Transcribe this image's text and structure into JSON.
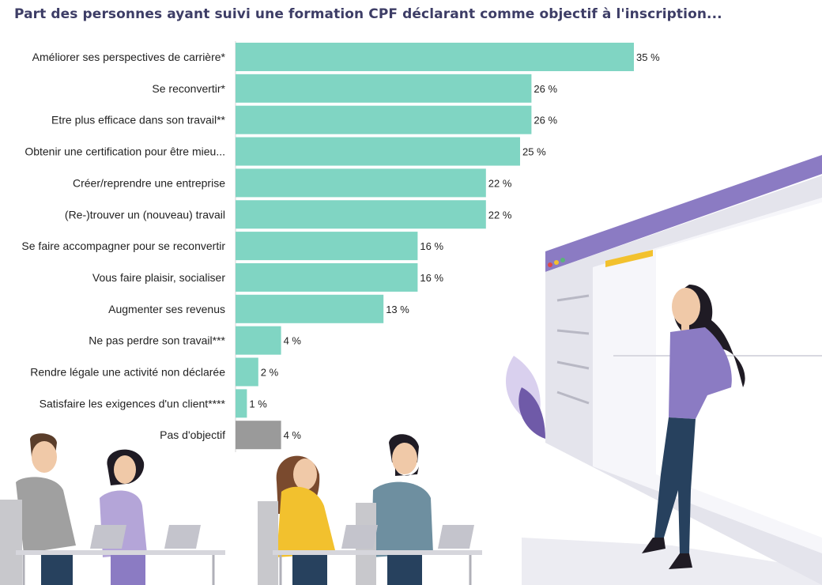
{
  "chart_data": {
    "type": "bar",
    "orientation": "horizontal",
    "title": "Part des personnes ayant suivi une formation CPF déclarant comme objectif à l'inscription...",
    "unit": "%",
    "categories": [
      "Améliorer ses perspectives de carrière*",
      "Se reconvertir*",
      "Etre plus efficace dans son travail**",
      "Obtenir une certification pour être mieu...",
      "Créer/reprendre une entreprise",
      "(Re-)trouver un (nouveau) travail",
      "Se faire accompagner pour se reconvertir",
      "Vous faire plaisir, socialiser",
      "Augmenter ses revenus",
      "Ne pas perdre son travail***",
      "Rendre légale une activité non déclarée",
      "Satisfaire les exigences d'un client****",
      "Pas d'objectif"
    ],
    "values": [
      35,
      26,
      26,
      25,
      22,
      22,
      16,
      16,
      13,
      4,
      2,
      1,
      4
    ],
    "value_labels": [
      "35 %",
      "26 %",
      "26 %",
      "25 %",
      "22 %",
      "22 %",
      "16 %",
      "16 %",
      "13 %",
      "4 %",
      "2 %",
      "1 %",
      "4 %"
    ],
    "xlim": [
      0,
      35
    ],
    "grid": false,
    "colors": {
      "bar": "#80d5c3",
      "bar_no_objective": "#9a9a9a",
      "axis": "#d4d4d4"
    }
  },
  "illustration": {
    "colors": {
      "purple": "#8b7bc3",
      "dark_hair": "#1f1b24",
      "jeans": "#27415e",
      "skin": "#f0c9a8",
      "yellow": "#f2c12e",
      "gray_shirt": "#a0a0a0",
      "lavender_shirt": "#b4a5d8",
      "teal_shirt": "#6e8fa0",
      "board_panel": "#e8e8ee",
      "shadow": "#e9e9f0"
    }
  }
}
